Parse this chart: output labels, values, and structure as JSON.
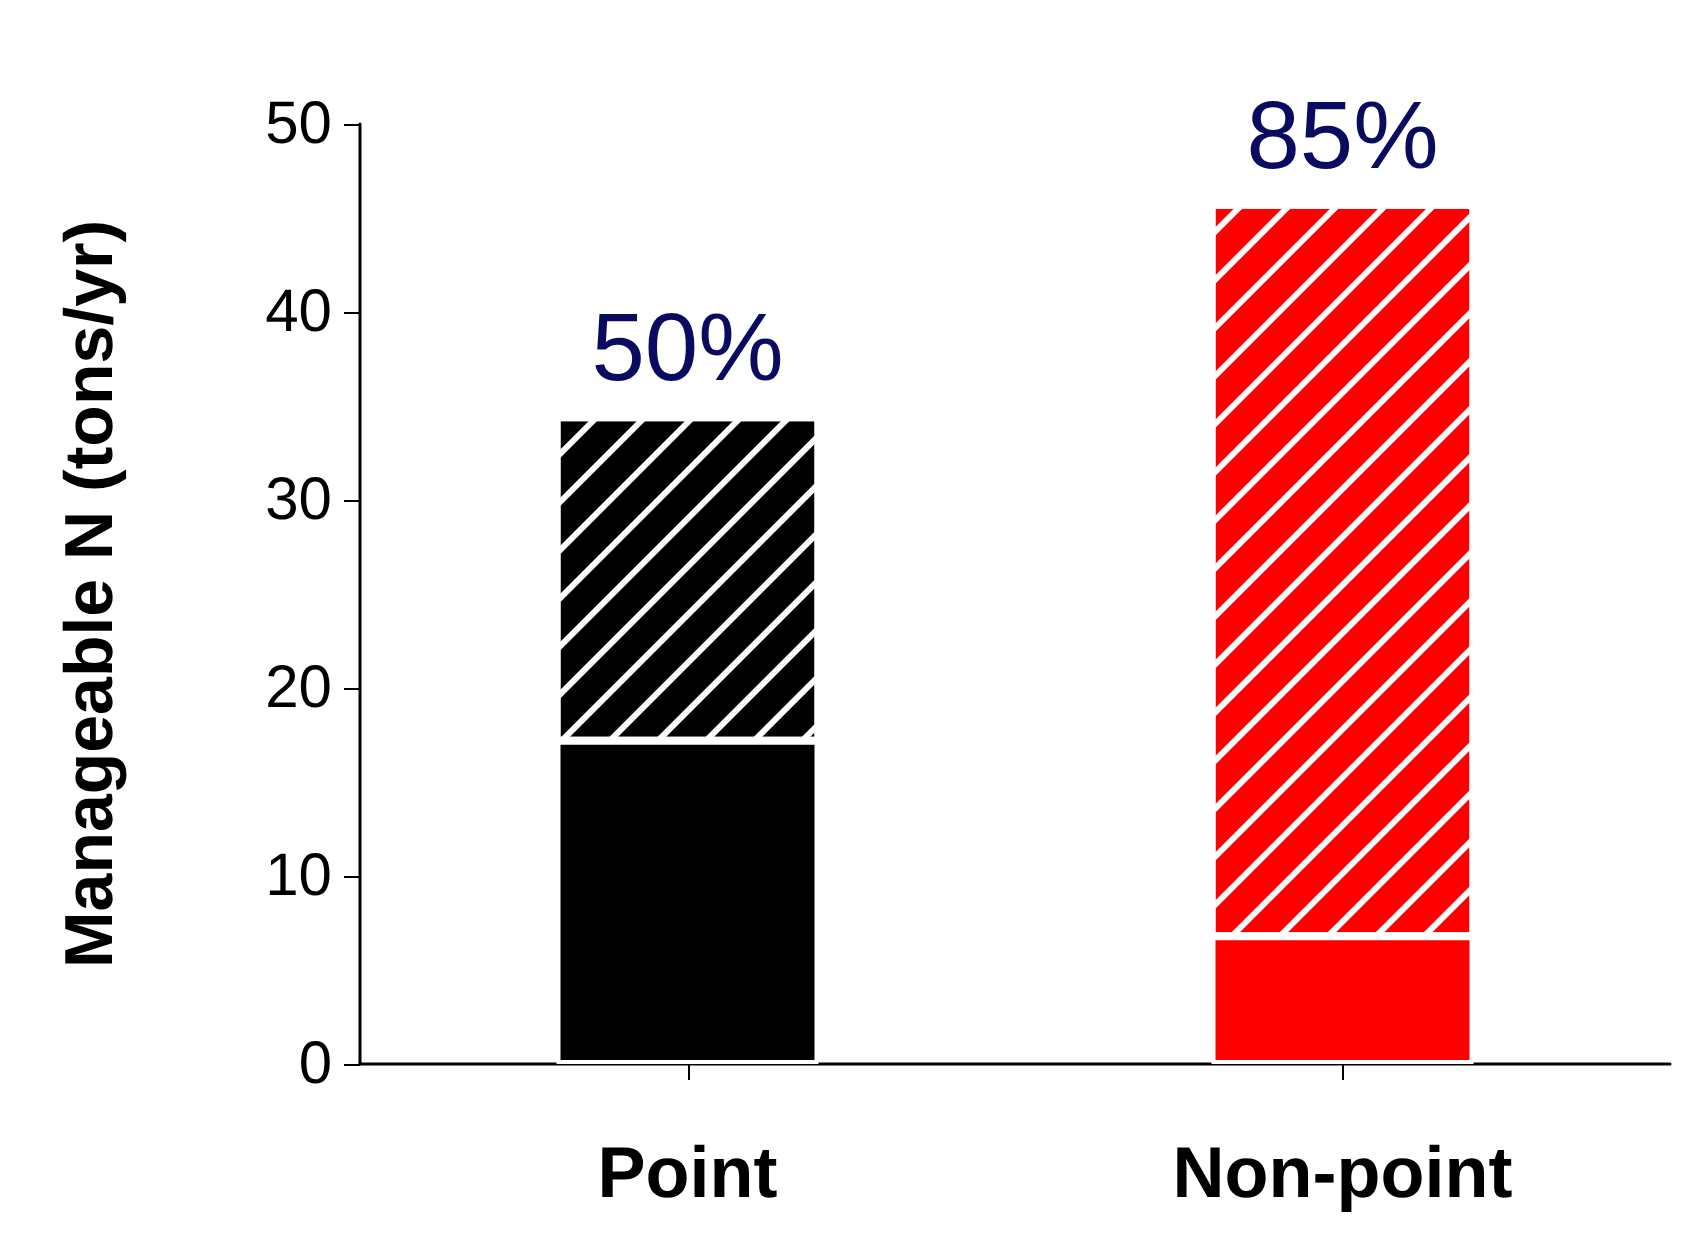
{
  "chart_data": {
    "type": "bar",
    "stacked": true,
    "ylabel": "Manageable N (tons/yr)",
    "categories": [
      "Point",
      "Non-point"
    ],
    "series": [
      {
        "colors": [
          "#000000",
          "#ff0000"
        ],
        "values": [
          17.2,
          6.8
        ]
      },
      {
        "colors": [
          "#000000",
          "#ff0000"
        ],
        "values": [
          17.2,
          38.9
        ]
      }
    ],
    "ylim": [
      0,
      50
    ],
    "yticks": [
      0,
      10,
      20,
      30,
      40,
      50
    ],
    "grid": false,
    "annotations": [
      {
        "text": "50%",
        "x": "Point",
        "y": 34.4
      },
      {
        "text": "85%",
        "x": "Non-point",
        "y": 45.7
      }
    ]
  }
}
